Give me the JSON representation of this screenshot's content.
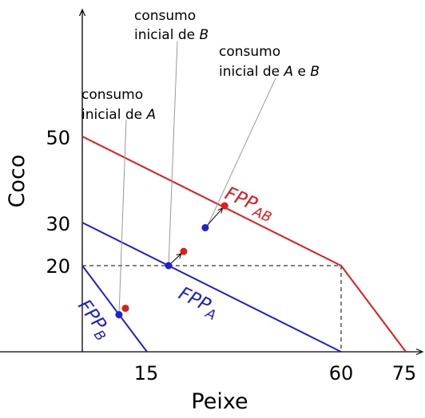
{
  "axes": {
    "xlabel": "Peixe",
    "ylabel": "Coco",
    "x_ticks": [
      "15",
      "60",
      "75"
    ],
    "y_ticks": [
      "20",
      "30",
      "50"
    ]
  },
  "frontiers": [
    {
      "id": "ab",
      "label_main": "FPP",
      "label_sub": "AB",
      "color": "#e41a1c",
      "points": [
        [
          0,
          50
        ],
        [
          60,
          20
        ],
        [
          75,
          0
        ]
      ]
    },
    {
      "id": "a",
      "label_main": "FPP",
      "label_sub": "A",
      "color": "#1f1fd4",
      "points": [
        [
          0,
          30
        ],
        [
          60,
          0
        ]
      ]
    },
    {
      "id": "b",
      "label_main": "FPP",
      "label_sub": "B",
      "color": "#1f1fd4",
      "points": [
        [
          0,
          20
        ],
        [
          15,
          0
        ]
      ]
    }
  ],
  "reference_point": [
    60,
    20
  ],
  "points": {
    "initial_a": [
      8.5,
      8.6
    ],
    "initial_b": [
      20,
      20
    ],
    "initial_ab": [
      28.5,
      28.8
    ],
    "final_a": [
      10,
      10.1
    ],
    "final_b": [
      23.5,
      23.3
    ],
    "final_ab": [
      33,
      33.9
    ]
  },
  "annotations": {
    "initial_a": {
      "line1": "consumo",
      "line2_prefix": "inicial de ",
      "line2_italic": "A"
    },
    "initial_b": {
      "line1": "consumo",
      "line2_prefix": "inicial de ",
      "line2_italic": "B"
    },
    "initial_ab": {
      "line1": "consumo",
      "line2_prefix": "inicial de ",
      "italic_a": "A",
      "conj": " e ",
      "italic_b": "B"
    }
  },
  "colors": {
    "red": "#e41a1c",
    "blue": "#1f1fd4",
    "axis": "#000000",
    "leader": "#999999"
  }
}
